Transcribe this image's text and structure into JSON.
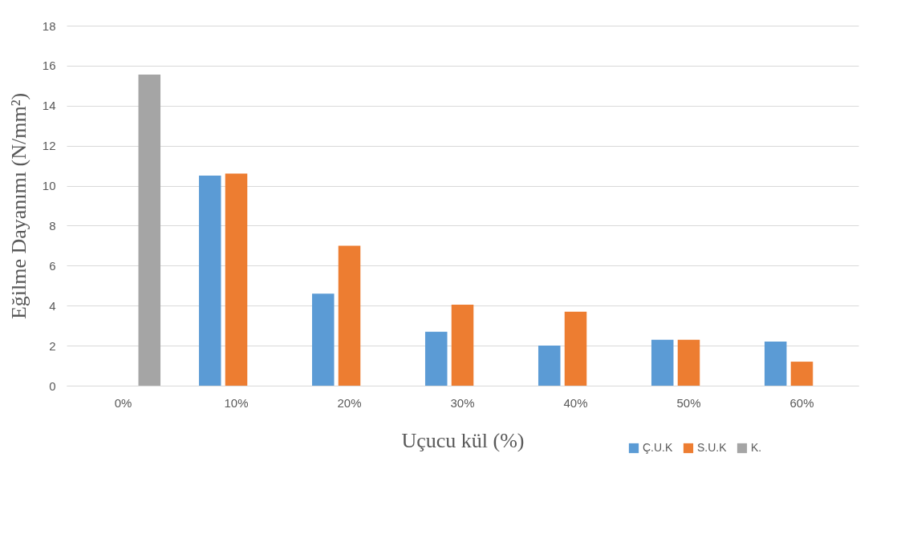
{
  "chart_data": {
    "type": "bar",
    "xlabel": "Uçucu kül (%)",
    "ylabel": "Eğilme Dayanımı (N/mm²)",
    "categories": [
      "0%",
      "10%",
      "20%",
      "30%",
      "40%",
      "50%",
      "60%"
    ],
    "series": [
      {
        "name": "Ç.U.K",
        "color": "#5b9bd5",
        "values": [
          null,
          10.5,
          4.6,
          2.7,
          2.0,
          2.3,
          2.2
        ]
      },
      {
        "name": "S.U.K",
        "color": "#ed7d31",
        "values": [
          null,
          10.6,
          7.0,
          4.05,
          3.7,
          2.3,
          1.2
        ]
      },
      {
        "name": "K.",
        "color": "#a5a5a5",
        "values": [
          15.55,
          null,
          null,
          null,
          null,
          null,
          null
        ]
      }
    ],
    "ylim": [
      0,
      18
    ],
    "yticks": [
      0,
      2,
      4,
      6,
      8,
      10,
      12,
      14,
      16,
      18
    ],
    "grid": "y",
    "legend": "bottom right"
  }
}
